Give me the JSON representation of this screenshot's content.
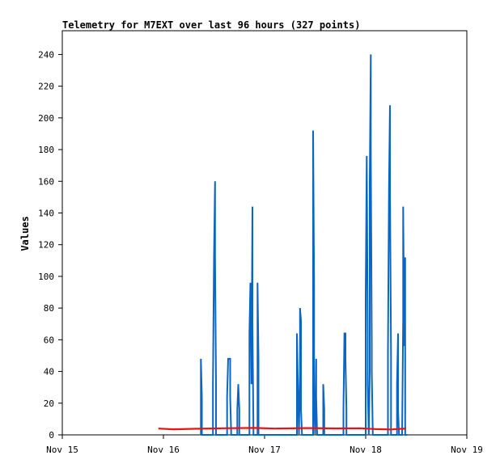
{
  "chart_data": {
    "type": "line",
    "title": "Telemetry for M7EXT over last 96 hours (327 points)",
    "ylabel": "Values",
    "xlabel": "",
    "ylim": [
      0,
      255
    ],
    "x_ticks": [
      {
        "label": "Nov 15",
        "day": 15
      },
      {
        "label": "Nov 16",
        "day": 16
      },
      {
        "label": "Nov 17",
        "day": 17
      },
      {
        "label": "Nov 18",
        "day": 18
      },
      {
        "label": "Nov 19",
        "day": 19
      }
    ],
    "y_ticks": [
      0,
      20,
      40,
      60,
      80,
      100,
      120,
      140,
      160,
      180,
      200,
      220,
      240
    ],
    "grid": false,
    "colors": {
      "series_blue": "#0a66c2",
      "series_red": "#ee1111",
      "axis": "#000000"
    },
    "series": [
      {
        "color": "#0a66c2",
        "points": [
          [
            16.37,
            0
          ],
          [
            16.37,
            48
          ],
          [
            16.38,
            24
          ],
          [
            16.38,
            0
          ],
          [
            16.49,
            0
          ],
          [
            16.49,
            32
          ],
          [
            16.5,
            112
          ],
          [
            16.51,
            160
          ],
          [
            16.51,
            112
          ],
          [
            16.52,
            32
          ],
          [
            16.52,
            0
          ],
          [
            16.63,
            0
          ],
          [
            16.63,
            24
          ],
          [
            16.64,
            48
          ],
          [
            16.66,
            48
          ],
          [
            16.66,
            24
          ],
          [
            16.67,
            0
          ],
          [
            16.73,
            0
          ],
          [
            16.73,
            16
          ],
          [
            16.74,
            32
          ],
          [
            16.75,
            16
          ],
          [
            16.75,
            0
          ],
          [
            16.85,
            0
          ],
          [
            16.85,
            64
          ],
          [
            16.86,
            96
          ],
          [
            16.87,
            32
          ],
          [
            16.88,
            144
          ],
          [
            16.88,
            72
          ],
          [
            16.89,
            0
          ],
          [
            16.93,
            0
          ],
          [
            16.93,
            96
          ],
          [
            16.94,
            48
          ],
          [
            16.94,
            0
          ],
          [
            17.32,
            0
          ],
          [
            17.32,
            64
          ],
          [
            17.33,
            32
          ],
          [
            17.34,
            0
          ],
          [
            17.35,
            40
          ],
          [
            17.35,
            80
          ],
          [
            17.36,
            72
          ],
          [
            17.36,
            16
          ],
          [
            17.37,
            0
          ],
          [
            17.48,
            0
          ],
          [
            17.48,
            192
          ],
          [
            17.49,
            96
          ],
          [
            17.49,
            24
          ],
          [
            17.5,
            0
          ],
          [
            17.51,
            48
          ],
          [
            17.51,
            24
          ],
          [
            17.52,
            0
          ],
          [
            17.58,
            0
          ],
          [
            17.58,
            32
          ],
          [
            17.59,
            16
          ],
          [
            17.59,
            0
          ],
          [
            17.78,
            0
          ],
          [
            17.78,
            16
          ],
          [
            17.79,
            64
          ],
          [
            17.8,
            64
          ],
          [
            17.8,
            48
          ],
          [
            17.81,
            16
          ],
          [
            17.81,
            0
          ],
          [
            17.88,
            0
          ],
          [
            18.0,
            0
          ],
          [
            18.0,
            88
          ],
          [
            18.01,
            176
          ],
          [
            18.02,
            64
          ],
          [
            18.02,
            32
          ],
          [
            18.03,
            0
          ],
          [
            18.04,
            40
          ],
          [
            18.04,
            160
          ],
          [
            18.05,
            240
          ],
          [
            18.05,
            180
          ],
          [
            18.06,
            60
          ],
          [
            18.06,
            40
          ],
          [
            18.07,
            0
          ],
          [
            18.22,
            0
          ],
          [
            18.22,
            52
          ],
          [
            18.23,
            156
          ],
          [
            18.24,
            208
          ],
          [
            18.24,
            156
          ],
          [
            18.25,
            52
          ],
          [
            18.25,
            0
          ],
          [
            18.31,
            0
          ],
          [
            18.31,
            32
          ],
          [
            18.32,
            64
          ],
          [
            18.32,
            16
          ],
          [
            18.33,
            0
          ],
          [
            18.36,
            0
          ],
          [
            18.37,
            72
          ],
          [
            18.37,
            144
          ],
          [
            18.38,
            72
          ],
          [
            18.38,
            56
          ],
          [
            18.39,
            112
          ],
          [
            18.39,
            0
          ],
          [
            18.41,
            0
          ]
        ]
      },
      {
        "color": "#ee1111",
        "points": [
          [
            15.95,
            4
          ],
          [
            16.1,
            3.5
          ],
          [
            16.3,
            3.8
          ],
          [
            16.6,
            4.2
          ],
          [
            16.9,
            4.4
          ],
          [
            17.1,
            4.0
          ],
          [
            17.4,
            4.3
          ],
          [
            17.7,
            4.1
          ],
          [
            17.95,
            4.2
          ],
          [
            18.1,
            3.6
          ],
          [
            18.25,
            3.4
          ],
          [
            18.35,
            3.8
          ],
          [
            18.4,
            4.0
          ]
        ]
      }
    ]
  }
}
